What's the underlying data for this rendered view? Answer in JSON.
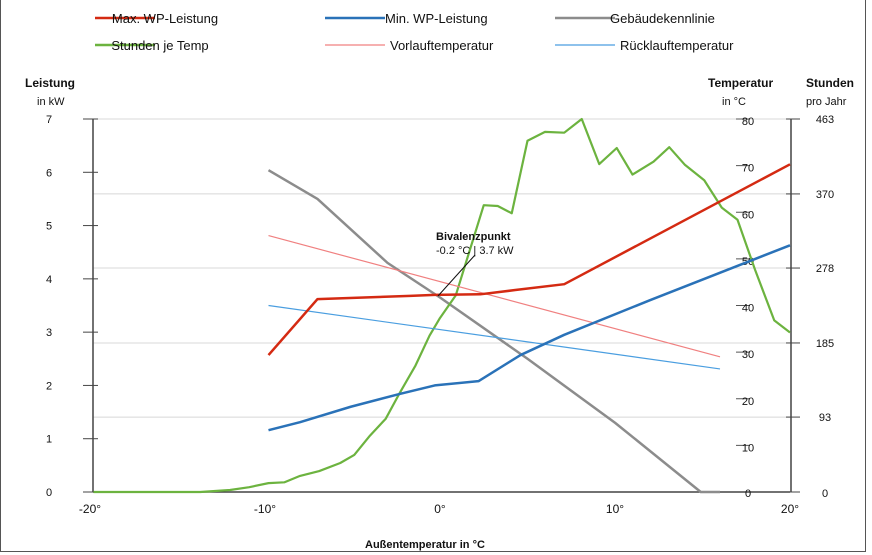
{
  "chart_data": {
    "type": "line",
    "xlabel": "Außentemperatur  in °C",
    "x_ticks": [
      "-20°",
      "-10°",
      "0°",
      "10°",
      "20°"
    ],
    "xlim": [
      -20,
      20
    ],
    "axes": {
      "left": {
        "label": "Leistung",
        "unit": "in kW",
        "ylim": [
          0,
          7
        ],
        "ticks": [
          "0",
          "1",
          "2",
          "3",
          "4",
          "5",
          "6",
          "7"
        ]
      },
      "temp": {
        "label": "Temperatur",
        "unit": "in °C",
        "ylim": [
          0,
          80
        ],
        "ticks": [
          "0",
          "10",
          "20",
          "30",
          "40",
          "50",
          "60",
          "70",
          "80"
        ]
      },
      "hours": {
        "label": "Stunden",
        "unit": "pro Jahr",
        "ylim": [
          0,
          463
        ],
        "ticks": [
          "0",
          "93",
          "185",
          "278",
          "370",
          "463"
        ]
      }
    },
    "grid": true,
    "legend_position": "top",
    "series": [
      {
        "name": "Max. WP-Leistung",
        "axis": "left",
        "color": "#d42a12",
        "x": [
          -9.8,
          -7,
          -1.7,
          -0.3,
          2.3,
          4.3,
          7.1,
          20
        ],
        "y": [
          2.57,
          3.62,
          3.68,
          3.7,
          3.71,
          3.79,
          3.9,
          6.15
        ]
      },
      {
        "name": "Min. WP-Leistung",
        "axis": "left",
        "color": "#2a72b8",
        "x": [
          -9.8,
          -8,
          -5.1,
          -2.3,
          -0.3,
          2.2,
          4.6,
          7.1,
          12,
          20
        ],
        "y": [
          1.16,
          1.31,
          1.6,
          1.84,
          2.0,
          2.08,
          2.57,
          2.95,
          3.6,
          4.63
        ]
      },
      {
        "name": "Gebäudekennlinie",
        "axis": "left",
        "color": "#8c8c8c",
        "x": [
          -9.8,
          -7,
          -3,
          0,
          5,
          10,
          14.9,
          16
        ],
        "y": [
          6.04,
          5.5,
          4.3,
          3.65,
          2.5,
          1.3,
          0,
          0
        ]
      },
      {
        "name": "Stunden je Temp",
        "axis": "hours",
        "color": "#6cb33f",
        "x": [
          -19.8,
          -13.7,
          -12,
          -10.9,
          -9.8,
          -8.9,
          -8,
          -6.9,
          -5.7,
          -4.9,
          -4,
          -3.1,
          -2.3,
          -1.4,
          -0.6,
          0,
          0.9,
          1.7,
          2.5,
          3.3,
          4.1,
          5,
          6,
          7.1,
          8.1,
          9.1,
          10.1,
          11,
          12.2,
          13.1,
          14,
          15.1,
          16.1,
          17,
          18,
          19.1,
          20
        ],
        "y": [
          0,
          0,
          2.5,
          6,
          11,
          12,
          20,
          26,
          36,
          46,
          70,
          91,
          123,
          157,
          194,
          216,
          244,
          300,
          356,
          355,
          346,
          436,
          447,
          446,
          463,
          407,
          427,
          394,
          410,
          428,
          406,
          387,
          353,
          338,
          276,
          213,
          198
        ]
      },
      {
        "name": "Vorlauftemperatur",
        "axis": "temp",
        "color": "#f08080",
        "x": [
          -9.8,
          16
        ],
        "y": [
          55,
          29
        ]
      },
      {
        "name": "Rücklauftemperatur",
        "axis": "temp",
        "color": "#4a9ee0",
        "x": [
          -9.8,
          16
        ],
        "y": [
          40,
          26.4
        ]
      }
    ],
    "annotation": {
      "title": "Bivalenzpunkt",
      "text": "-0.2 °C | 3.7 kW",
      "x": -0.2,
      "y": 3.7
    }
  }
}
